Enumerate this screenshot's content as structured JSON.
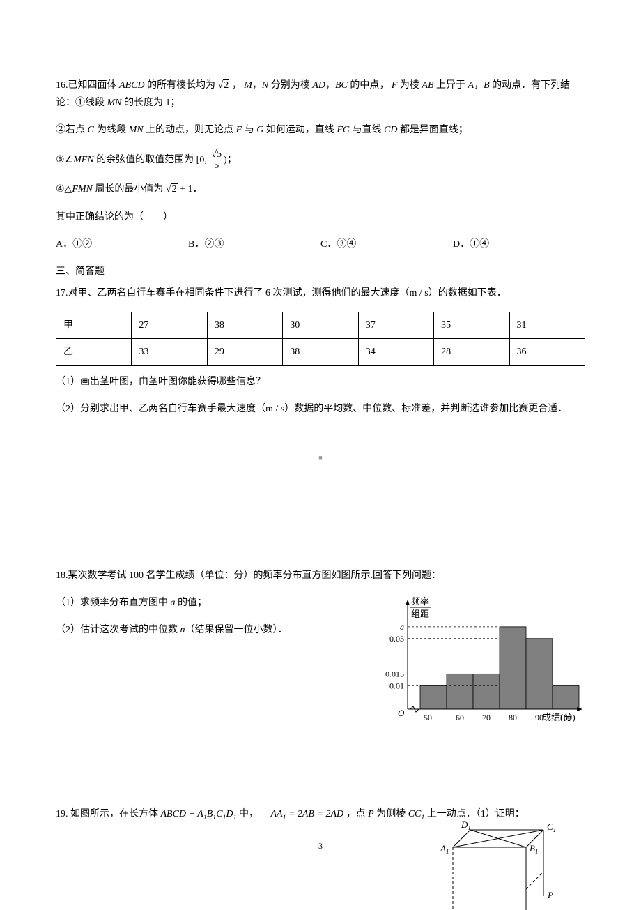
{
  "q16": {
    "stem_prefix": "16.已知四面体 ",
    "abcd": "ABCD",
    "stem_mid1": " 的所有棱长均为",
    "sqrt2_surd": "√",
    "sqrt2_rad": "2",
    "stem_mid2": " ，",
    "m": "M",
    "comma1": "，",
    "n": "N",
    "stem_mid3": " 分别为棱 ",
    "ad": "AD",
    "comma2": "，",
    "bc": "BC",
    "stem_mid4": " 的中点，",
    "f": "F",
    "stem_mid5": " 为棱 ",
    "ab": "AB",
    "stem_mid6": " 上异于 ",
    "a": "A",
    "comma3": "，",
    "b": "B",
    "stem_mid7": " 的动点．有下列结论：①线段 ",
    "mn": "MN",
    "stem_mid8": " 的长度为 1；",
    "c2_pre": "②若点 ",
    "g": "G",
    "c2_mid1": " 为线段 ",
    "mn2": "MN",
    "c2_mid2": " 上的动点，则无论点 ",
    "f2": "F",
    "c2_mid3": " 与 ",
    "g2": "G",
    "c2_mid4": " 如何运动，直线 ",
    "fg": "FG",
    "c2_mid5": " 与直线 ",
    "cd": "CD",
    "c2_tail": " 都是异面直线；",
    "c3_pre": "③",
    "angle": "∠",
    "mfn": "MFN",
    "c3_mid": " 的余弦值的取值范围为 [0,",
    "frac_num_surd": "√",
    "frac_num_rad": "5",
    "frac_den": "5",
    "c3_tail": ")；",
    "c4_pre": "④△",
    "fmn": "FMN",
    "c4_mid": " 周长的最小值为",
    "c4_surd": "√",
    "c4_rad": "2",
    "c4_plus": " + 1",
    "c4_tail": "．",
    "ask": "其中正确结论的为（　　）",
    "optA": "A．①②",
    "optB": "B．②③",
    "optC": "C．③④",
    "optD": "D．①④"
  },
  "section3": "三、简答题",
  "q17": {
    "stem": "17.对甲、乙两名自行车赛手在相同条件下进行了 6 次测试，测得他们的最大速度（m / s）的数据如下表．",
    "table": {
      "rows": [
        [
          "甲",
          "27",
          "38",
          "30",
          "37",
          "35",
          "31"
        ],
        [
          "乙",
          "33",
          "29",
          "38",
          "34",
          "28",
          "36"
        ]
      ]
    },
    "sub1": "（1）画出茎叶图，由茎叶图你能获得哪些信息？",
    "sub2": "（2）分别求出甲、乙两名自行车赛手最大速度（m / s）数据的平均数、中位数、标准差，并判断选谁参加比赛更合适．"
  },
  "q18": {
    "stem": "18.某次数学考试 100 名学生成绩（单位：分）的频率分布直方图如图所示.回答下列问题：",
    "sub1_pre": "（1）求频率分布直方图中 ",
    "a_var": "a",
    "sub1_tail": " 的值；",
    "sub2_pre": "（2）估计这次考试的中位数 ",
    "n_var": "n",
    "sub2_tail": "（结果保留一位小数）．",
    "hist": {
      "ylabel_top": "频率",
      "ylabel_bot": "组距",
      "y_ticks": [
        "a",
        "0.03",
        "0.015",
        "0.01"
      ],
      "x_ticks": [
        "50",
        "60",
        "70",
        "80",
        "90",
        "100"
      ],
      "origin": "O",
      "xlabel": "成绩(分)",
      "bars": [
        {
          "x": 50,
          "h": 0.01
        },
        {
          "x": 60,
          "h": 0.015
        },
        {
          "x": 70,
          "h": 0.015
        },
        {
          "x": 80,
          "h": 0.035
        },
        {
          "x": 90,
          "h": 0.03
        },
        {
          "x": 100,
          "h": 0.01
        }
      ],
      "bar_fill": "#808080",
      "axis_color": "#000000",
      "dash_color": "#000000",
      "bg": "#ffffff"
    }
  },
  "q19": {
    "stem_pre": "19. 如图所示，在长方体 ",
    "body1": "ABCD − A",
    "s1": "1",
    "body2": "B",
    "s2": "1",
    "body3": "C",
    "s3": "1",
    "body4": "D",
    "s4": "1",
    "stem_mid1": " 中， ",
    "eq1": "AA",
    "eq1s": "1",
    "eq2": " = 2AB = 2AD",
    "stem_mid2": " ，点 ",
    "p": "P",
    "stem_mid3": " 为侧棱 ",
    "cc": "CC",
    "ccs": "1",
    "stem_tail": " 上一动点．（1）证明：",
    "labels": {
      "D1": "D",
      "D1s": "1",
      "C1": "C",
      "C1s": "1",
      "A1": "A",
      "A1s": "1",
      "B1": "B",
      "B1s": "1",
      "P": "P"
    }
  },
  "page_num": "3",
  "watermark": "■"
}
